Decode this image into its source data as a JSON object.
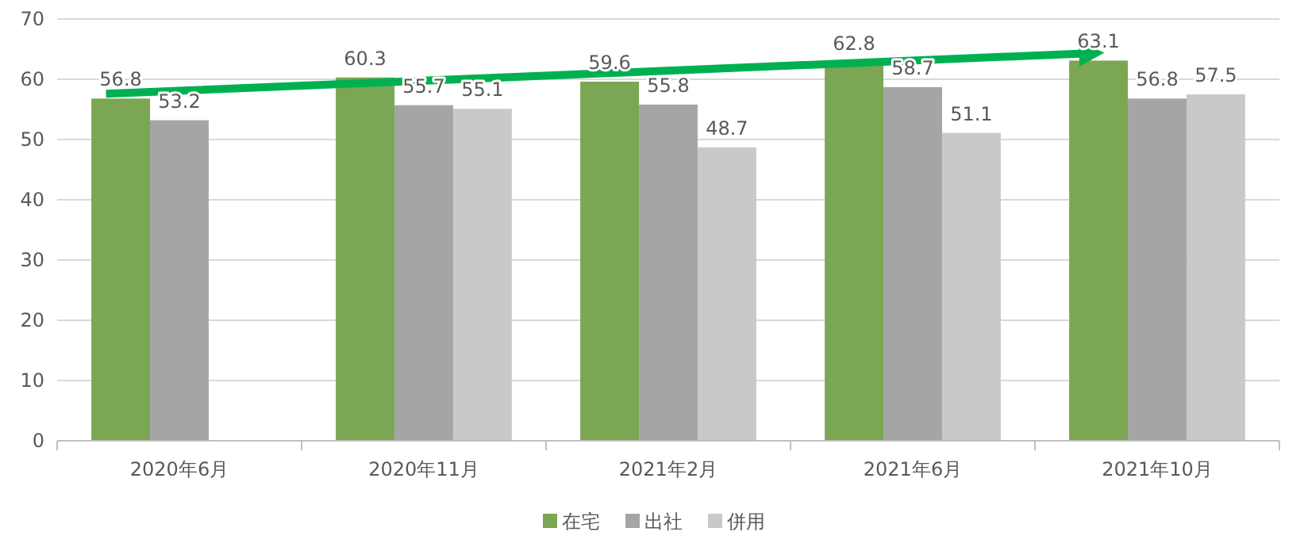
{
  "chart_data": {
    "type": "bar",
    "categories": [
      "2020年6月",
      "2020年11月",
      "2021年2月",
      "2021年6月",
      "2021年10月"
    ],
    "series": [
      {
        "name": "在宅",
        "color": "#7ba653",
        "values": [
          56.8,
          60.3,
          59.6,
          62.8,
          63.1
        ]
      },
      {
        "name": "出社",
        "color": "#a5a5a5",
        "values": [
          53.2,
          55.7,
          55.8,
          58.7,
          56.8
        ]
      },
      {
        "name": "併用",
        "color": "#c9c9c9",
        "values": [
          null,
          55.1,
          48.7,
          51.1,
          57.5
        ]
      }
    ],
    "ylim": [
      0,
      70
    ],
    "yticks": [
      0,
      10,
      20,
      30,
      40,
      50,
      60,
      70
    ],
    "grid": "y",
    "legend": "bottom",
    "data_labels": true
  }
}
